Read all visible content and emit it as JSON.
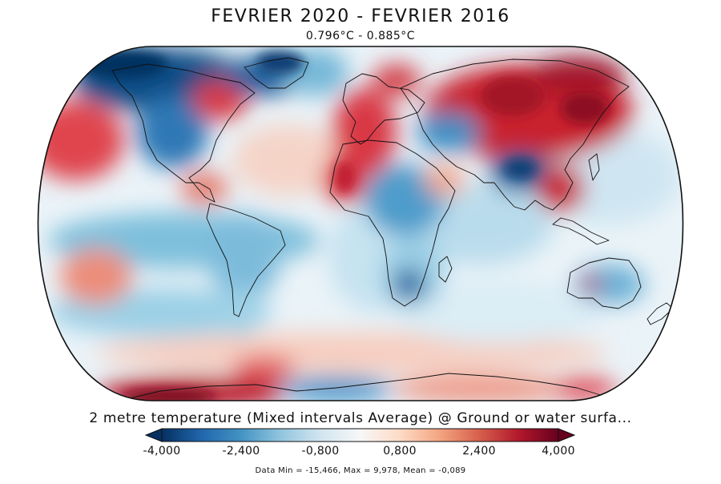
{
  "title": "FEVRIER 2020 - FEVRIER 2016",
  "subtitle": "0.796°C - 0.885°C",
  "colorbar": {
    "title": "2 metre temperature (Mixed intervals Average) @ Ground or water surfa...",
    "ticks": [
      "-4,000",
      "-2,400",
      "-0,800",
      "0,800",
      "2,400",
      "4,000"
    ],
    "stats": "Data Min = -15,466, Max = 9,978, Mean = -0,089",
    "colors": [
      "#053061",
      "#2166ac",
      "#4393c3",
      "#92c5de",
      "#d1e5f0",
      "#f7f7f7",
      "#fddbc7",
      "#f4a582",
      "#d6604d",
      "#b2182b",
      "#67001f"
    ]
  }
}
